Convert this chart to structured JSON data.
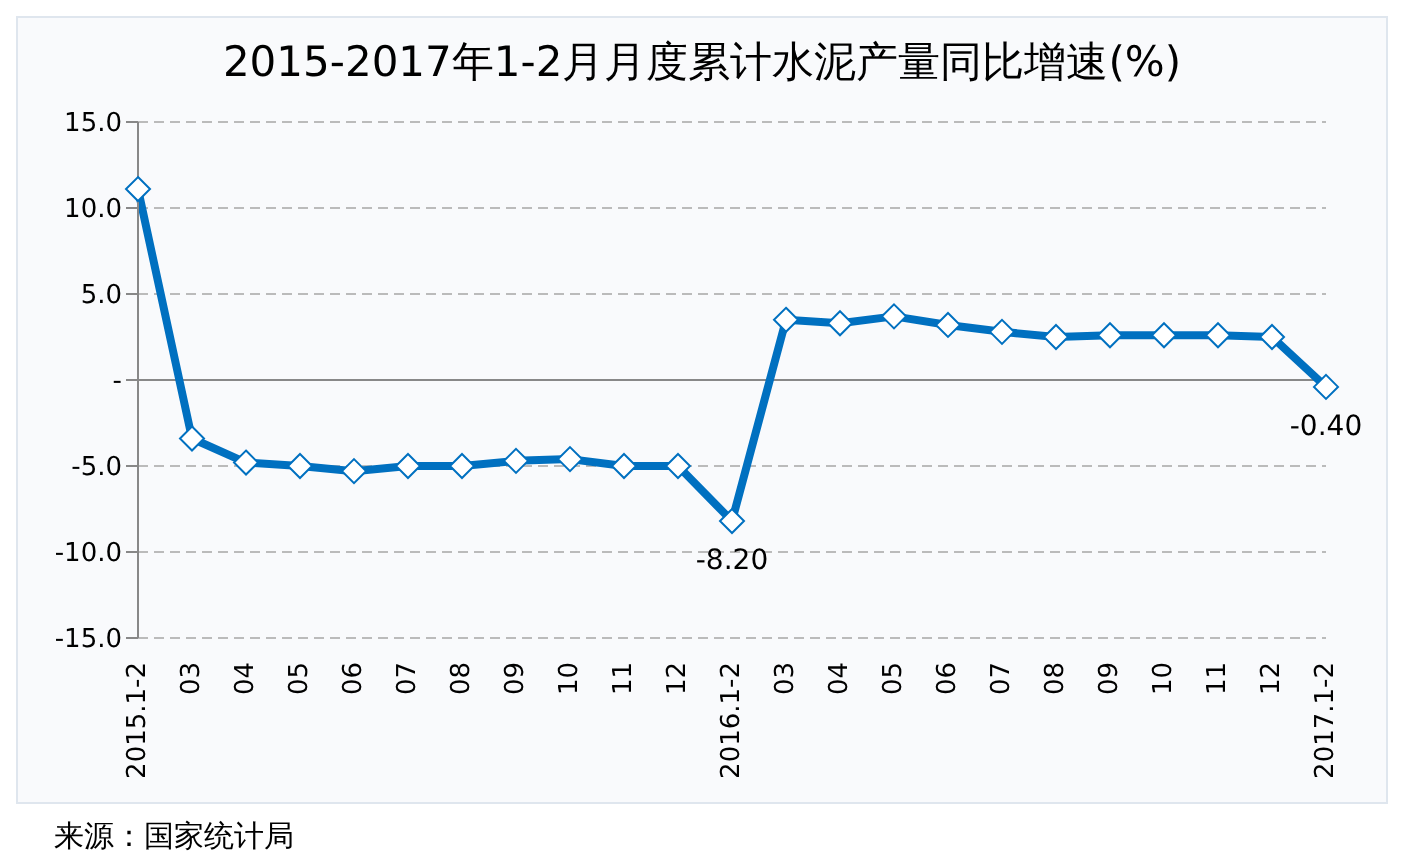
{
  "chart_data": {
    "type": "line",
    "title": "2015-2017年1-2月月度累计水泥产量同比增速(%)",
    "categories": [
      "2015.1-2",
      "03",
      "04",
      "05",
      "06",
      "07",
      "08",
      "09",
      "10",
      "11",
      "12",
      "2016.1-2",
      "03",
      "04",
      "05",
      "06",
      "07",
      "08",
      "09",
      "10",
      "11",
      "12",
      "2017.1-2"
    ],
    "series": [
      {
        "color": "#0070c0",
        "values": [
          11.1,
          -3.4,
          -4.8,
          -5.0,
          -5.3,
          -5.0,
          -5.0,
          -4.7,
          -4.6,
          -5.0,
          -5.0,
          -8.2,
          3.5,
          3.3,
          3.7,
          3.2,
          2.8,
          2.5,
          2.6,
          2.6,
          2.6,
          2.5,
          -0.4
        ],
        "value_labels": [
          null,
          null,
          null,
          null,
          null,
          null,
          null,
          null,
          null,
          null,
          null,
          "-8.20",
          null,
          null,
          null,
          null,
          null,
          null,
          null,
          null,
          null,
          null,
          "-0.40"
        ]
      }
    ],
    "ylim": [
      -15,
      15
    ],
    "yticks": [
      {
        "value": -15,
        "label": "-15.0"
      },
      {
        "value": -10,
        "label": "-10.0"
      },
      {
        "value": -5,
        "label": "-5.0"
      },
      {
        "value": 0,
        "label": "-"
      },
      {
        "value": 5,
        "label": "5.0"
      },
      {
        "value": 10,
        "label": "10.0"
      },
      {
        "value": 15,
        "label": "15.0"
      }
    ],
    "grid": "y",
    "marker": "diamond",
    "line_style": "solid",
    "annotations": [
      "来源：国家统计局"
    ]
  }
}
